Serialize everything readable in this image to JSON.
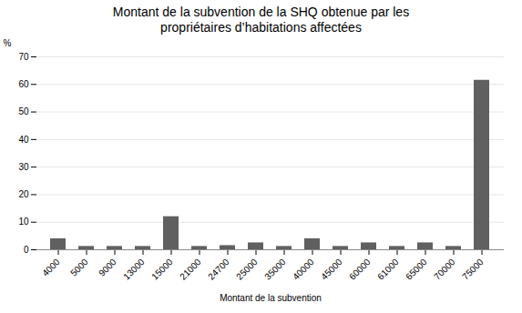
{
  "chart_data": {
    "type": "bar",
    "title": "Montant de la subvention de la SHQ obtenue par les\npropriétaires d’habitations affectées",
    "xlabel": "Montant de la subvention",
    "ylabel": "%",
    "categories": [
      "4000",
      "5000",
      "9000",
      "13000",
      "15000",
      "21000",
      "24700",
      "25000",
      "35000",
      "40000",
      "45000",
      "60000",
      "61000",
      "65000",
      "70000",
      "75000"
    ],
    "values": [
      4.0,
      1.2,
      1.2,
      1.2,
      12.0,
      1.2,
      1.5,
      2.5,
      1.2,
      4.0,
      1.2,
      2.5,
      1.2,
      2.5,
      1.2,
      61.5
    ],
    "color": "#606060",
    "ylim": [
      0,
      70
    ],
    "yticks": [
      0,
      10,
      20,
      30,
      40,
      50,
      60,
      70
    ],
    "grid": true
  }
}
